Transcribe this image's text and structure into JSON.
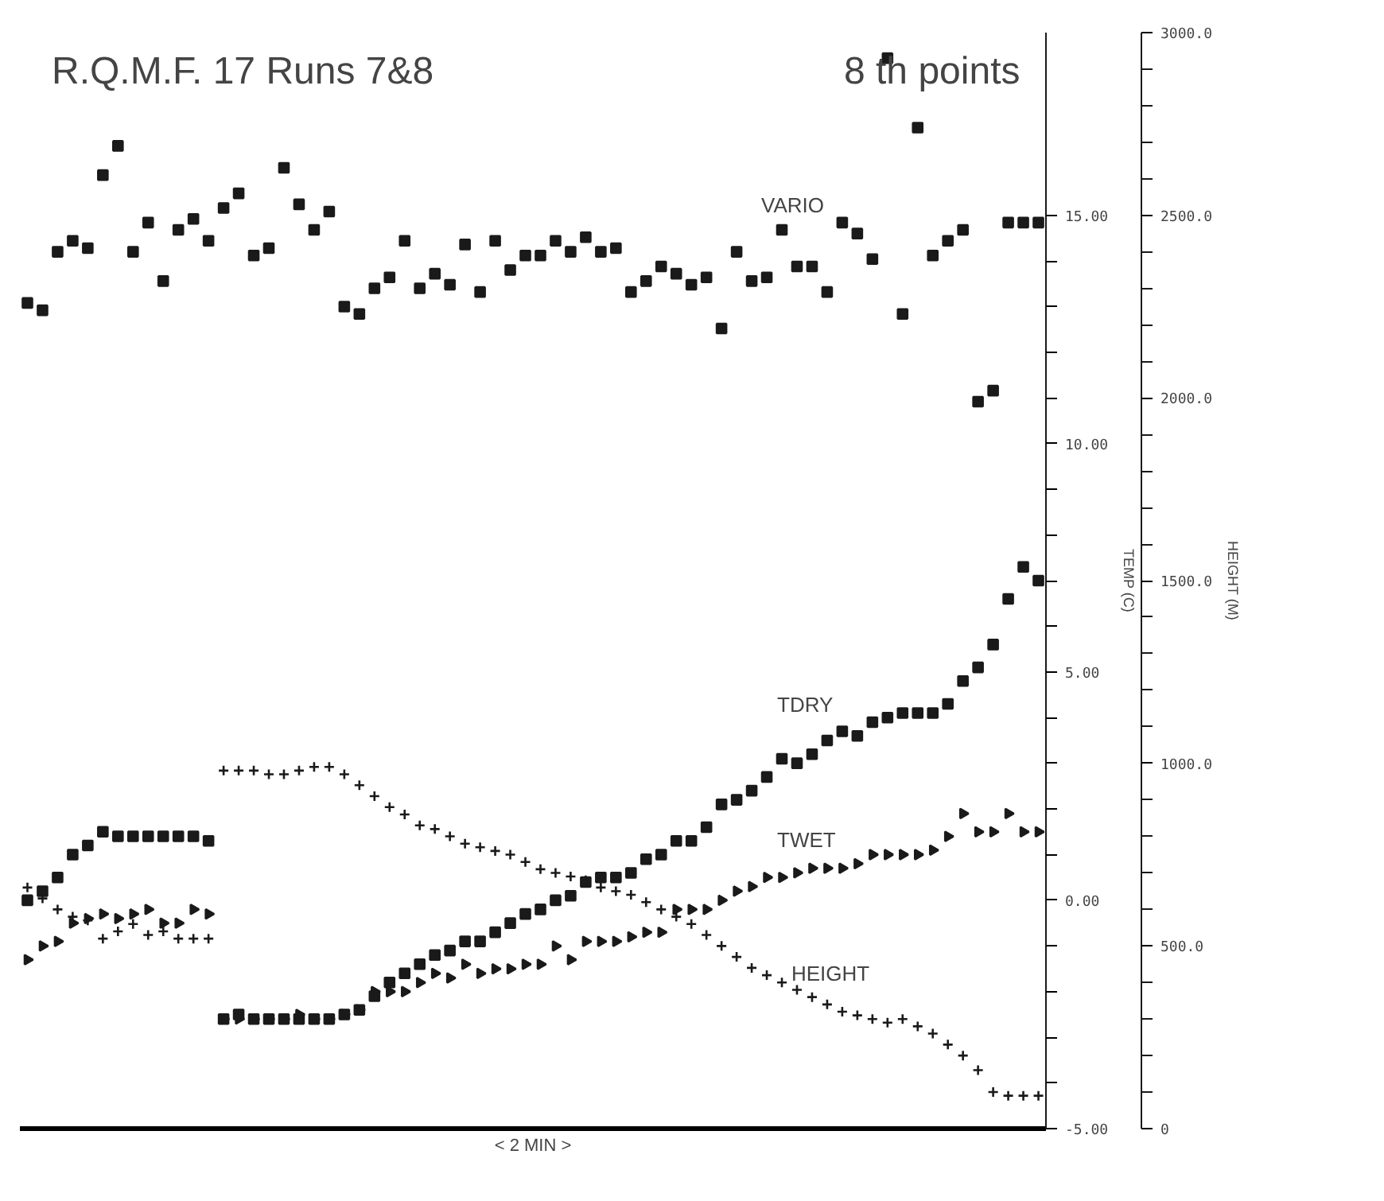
{
  "chart_data": {
    "type": "scatter",
    "title": "R.Q.M.F. 17    Runs   7&8",
    "subtitle": "8 th points",
    "xlabel": "< 2 MIN >",
    "ylabel": "TEMP (C)",
    "y2label": "HEIGHT (M)",
    "categories": [
      null,
      null,
      null,
      null,
      null,
      null,
      null,
      null,
      null,
      null,
      null,
      null,
      null,
      null,
      null,
      null,
      null,
      null,
      null,
      null,
      null,
      null,
      null,
      null,
      null,
      null,
      null,
      null,
      null,
      null,
      null,
      null,
      null,
      null,
      null,
      null,
      null,
      null,
      null,
      null,
      null,
      null,
      null,
      null,
      null,
      null,
      null,
      null,
      null,
      null,
      null,
      null,
      null,
      null,
      null,
      null,
      null,
      null,
      null,
      null,
      null,
      null,
      null,
      null,
      null,
      null,
      null,
      null
    ],
    "ylim": [
      -5,
      19
    ],
    "yticks": [
      {
        "value": -5,
        "label": "-5.00"
      },
      {
        "value": -4,
        "label": null
      },
      {
        "value": -3,
        "label": null
      },
      {
        "value": -2,
        "label": null
      },
      {
        "value": -1,
        "label": null
      },
      {
        "value": 0,
        "label": "0.00"
      },
      {
        "value": 1,
        "label": null
      },
      {
        "value": 2,
        "label": null
      },
      {
        "value": 3,
        "label": null
      },
      {
        "value": 4,
        "label": null
      },
      {
        "value": 5,
        "label": "5.00"
      },
      {
        "value": 6,
        "label": null
      },
      {
        "value": 7,
        "label": null
      },
      {
        "value": 8,
        "label": null
      },
      {
        "value": 9,
        "label": null
      },
      {
        "value": 10,
        "label": "10.00"
      },
      {
        "value": 11,
        "label": null
      },
      {
        "value": 12,
        "label": null
      },
      {
        "value": 13,
        "label": null
      },
      {
        "value": 14,
        "label": null
      },
      {
        "value": 15,
        "label": "15.00"
      }
    ],
    "y2lim": [
      0,
      3000
    ],
    "y2ticks": [
      0,
      {
        "value": 500,
        "label": "500.0"
      },
      {
        "value": 1000,
        "label": "1000.0"
      },
      {
        "value": 1500,
        "label": "1500.0"
      },
      {
        "value": 2000,
        "label": "2000.0"
      },
      {
        "value": 2500,
        "label": "2500.0"
      },
      {
        "value": 3000,
        "label": "3000.0"
      }
    ],
    "grid": false,
    "series": [
      {
        "name": "VARIO",
        "color": "#1a1a1a",
        "marker": "square",
        "axis": "y2",
        "values": [
          2260,
          2240,
          2400,
          2430,
          2410,
          2610,
          2690,
          2400,
          2480,
          2320,
          2460,
          2490,
          2430,
          2520,
          2560,
          2390,
          2410,
          2630,
          2530,
          2460,
          2510,
          2250,
          2230,
          2300,
          2330,
          2430,
          2300,
          2340,
          2310,
          2420,
          2290,
          2430,
          2350,
          2390,
          2390,
          2430,
          2400,
          2440,
          2400,
          2410,
          2290,
          2320,
          2360,
          2340,
          2310,
          2330,
          2190,
          2400,
          2320,
          2330,
          2460,
          2360,
          2360,
          2290,
          2480,
          2450,
          2380,
          2930,
          2230,
          2740,
          2390,
          2430,
          2460,
          1990,
          2020,
          2480,
          2480,
          2480
        ]
      },
      {
        "name": "TDRY",
        "color": "#1a1a1a",
        "marker": "square",
        "values": [
          0.0,
          0.2,
          0.5,
          1.0,
          1.2,
          1.5,
          1.4,
          1.4,
          1.4,
          1.4,
          1.4,
          1.4,
          1.3,
          -2.6,
          -2.5,
          -2.6,
          -2.6,
          -2.6,
          -2.6,
          -2.6,
          -2.6,
          -2.5,
          -2.4,
          -2.1,
          -1.8,
          -1.6,
          -1.4,
          -1.2,
          -1.1,
          -0.9,
          -0.9,
          -0.7,
          -0.5,
          -0.3,
          -0.2,
          0.0,
          0.1,
          0.4,
          0.5,
          0.5,
          0.6,
          0.9,
          1.0,
          1.3,
          1.3,
          1.6,
          2.1,
          2.2,
          2.4,
          2.7,
          3.1,
          3.0,
          3.2,
          3.5,
          3.7,
          3.6,
          3.9,
          4.0,
          4.1,
          4.1,
          4.1,
          4.3,
          4.8,
          5.1,
          5.6,
          6.6,
          7.3,
          7.0
        ]
      },
      {
        "name": "TWET",
        "color": "#1a1a1a",
        "marker": "triangle",
        "values": [
          -1.3,
          -1.0,
          -0.9,
          -0.5,
          -0.4,
          -0.3,
          -0.4,
          -0.3,
          -0.2,
          -0.5,
          -0.5,
          -0.2,
          -0.3,
          -2.6,
          -2.6,
          -2.6,
          -2.6,
          -2.6,
          -2.5,
          -2.6,
          -2.6,
          -2.5,
          -2.4,
          -2.0,
          -2.0,
          -2.0,
          -1.8,
          -1.6,
          -1.7,
          -1.4,
          -1.6,
          -1.5,
          -1.5,
          -1.4,
          -1.4,
          -1.0,
          -1.3,
          -0.9,
          -0.9,
          -0.9,
          -0.8,
          -0.7,
          -0.7,
          -0.2,
          -0.2,
          -0.2,
          0.0,
          0.2,
          0.3,
          0.5,
          0.5,
          0.6,
          0.7,
          0.7,
          0.7,
          0.8,
          1.0,
          1.0,
          1.0,
          1.0,
          1.1,
          1.4,
          1.9,
          1.5,
          1.5,
          1.9,
          1.5,
          1.5
        ]
      },
      {
        "name": "HEIGHT",
        "color": "#1a1a1a",
        "marker": "cross",
        "axis": "y2",
        "values": [
          660,
          630,
          600,
          580,
          570,
          520,
          540,
          560,
          530,
          540,
          520,
          520,
          520,
          980,
          980,
          980,
          970,
          970,
          980,
          990,
          990,
          970,
          940,
          910,
          880,
          860,
          830,
          820,
          800,
          780,
          770,
          760,
          750,
          730,
          710,
          700,
          690,
          680,
          660,
          650,
          640,
          620,
          600,
          580,
          560,
          530,
          500,
          470,
          440,
          420,
          400,
          380,
          360,
          340,
          320,
          310,
          300,
          290,
          300,
          280,
          260,
          230,
          200,
          160,
          100,
          90,
          90,
          90
        ]
      }
    ]
  }
}
